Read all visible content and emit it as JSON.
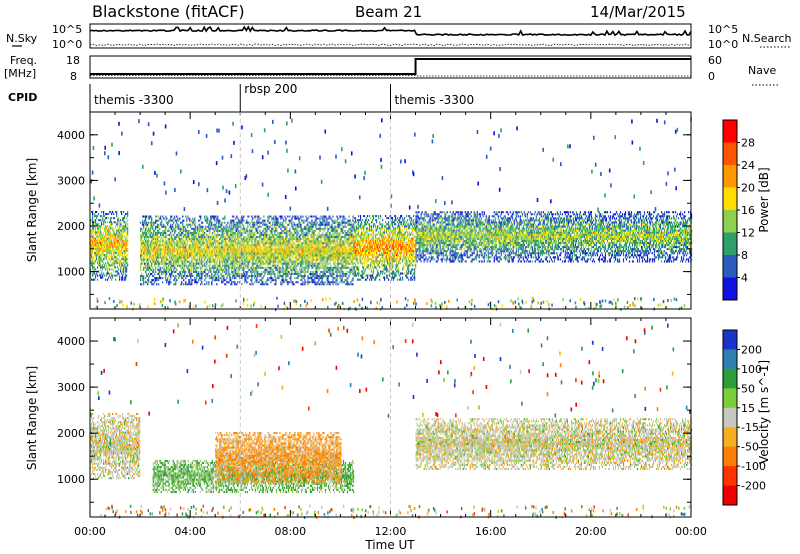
{
  "header": {
    "title": "Blackstone (fitACF)",
    "beam": "Beam 21",
    "date": "14/Mar/2015"
  },
  "nsky_panel": {
    "left_label": "N.Sky",
    "right_label": "N.Search",
    "left_ticks": [
      "10^5",
      "10^0"
    ],
    "right_ticks": [
      "10^5",
      "10^0"
    ]
  },
  "freq_panel": {
    "left_label": "Freq.",
    "left_unit": "[MHz]",
    "right_label": "Nave",
    "left_ticks": [
      "18",
      "8"
    ],
    "right_ticks": [
      "60",
      "0"
    ],
    "step_time_hours": 13.0
  },
  "cpid": {
    "label": "CPID",
    "segments": [
      {
        "label": "themis -3300",
        "start": 0.0,
        "end": 6.0
      },
      {
        "label": "rbsp 200",
        "start": 6.0,
        "end": 12.0
      },
      {
        "label": "themis -3300",
        "start": 12.0,
        "end": 24.0
      }
    ]
  },
  "power_panel": {
    "ylabel": "Slant Range [km]",
    "cbar_label": "Power [dB]",
    "cbar_ticks": [
      "28",
      "24",
      "20",
      "16",
      "12",
      "8",
      "4"
    ],
    "cbar_colors": [
      "#ff0000",
      "#ff5500",
      "#ff9900",
      "#ffdd00",
      "#8fd14f",
      "#2e9e6b",
      "#2a5bbf",
      "#1010e0"
    ]
  },
  "velocity_panel": {
    "ylabel": "Slant Range [km]",
    "cbar_label": "Velocity [m s^-1]",
    "cbar_ticks": [
      "200",
      "100",
      "50",
      "15",
      "-15",
      "-50",
      "-100",
      "-200"
    ],
    "cbar_colors": [
      "#1a33cc",
      "#2e7fb0",
      "#2e9e3a",
      "#7ccd3a",
      "#c8c8c0",
      "#f5b020",
      "#ff7f00",
      "#ff3300",
      "#ee0000"
    ]
  },
  "chart_data": {
    "type": "heatmap",
    "xlabel": "Time UT",
    "x_tick_labels": [
      "00:00",
      "04:00",
      "08:00",
      "12:00",
      "16:00",
      "20:00",
      "00:00"
    ],
    "x_range_hours": [
      0,
      24
    ],
    "y_tick_labels": [
      "1000",
      "2000",
      "3000",
      "4000"
    ],
    "ylim": [
      180,
      4500
    ],
    "panels": [
      "Power [dB]",
      "Velocity [m s^-1]"
    ],
    "dashed_lines_hours": [
      6.0,
      12.0
    ],
    "frequency_mhz": {
      "before_13ut": 10,
      "after_13ut": 18
    },
    "power_bands": [
      {
        "t_start": 0.0,
        "t_end": 1.5,
        "range_km": [
          800,
          2300
        ],
        "typical_db": 16
      },
      {
        "t_start": 2.0,
        "t_end": 10.5,
        "range_km": [
          700,
          2200
        ],
        "typical_db": 14
      },
      {
        "t_start": 10.5,
        "t_end": 13.0,
        "range_km": [
          800,
          2200
        ],
        "typical_db": 18
      },
      {
        "t_start": 13.0,
        "t_end": 24.0,
        "range_km": [
          1200,
          2300
        ],
        "typical_db": 12
      }
    ],
    "velocity_bands": [
      {
        "t_start": 0.0,
        "t_end": 2.0,
        "range_km": [
          1000,
          2400
        ],
        "typical_ms": 0
      },
      {
        "t_start": 2.5,
        "t_end": 10.5,
        "range_km": [
          700,
          1400
        ],
        "typical_ms": 30
      },
      {
        "t_start": 5.0,
        "t_end": 10.0,
        "range_km": [
          900,
          2000
        ],
        "typical_ms": -30
      },
      {
        "t_start": 13.0,
        "t_end": 24.0,
        "range_km": [
          1200,
          2300
        ],
        "typical_ms": 0
      }
    ]
  }
}
